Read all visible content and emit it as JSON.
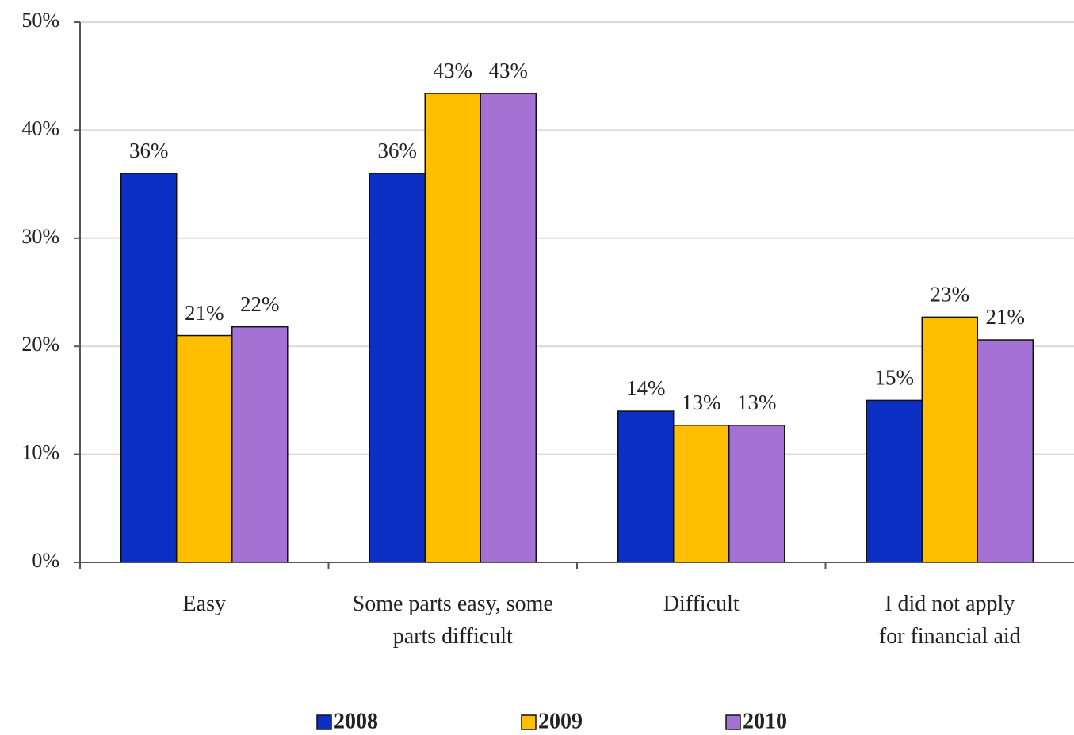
{
  "chart_data": {
    "type": "bar",
    "categories": [
      "Easy",
      "Some parts easy, some parts difficult",
      "Difficult",
      "I did not apply for financial aid"
    ],
    "series": [
      {
        "name": "2008",
        "color": "#0c2fc4",
        "values": [
          36,
          36,
          14,
          15
        ],
        "value_labels": [
          "36%",
          "36%",
          "14%",
          "15%"
        ]
      },
      {
        "name": "2009",
        "color": "#ffbf00",
        "values": [
          21,
          43.4,
          12.7,
          22.7
        ],
        "value_labels": [
          "21%",
          "43%",
          "13%",
          "23%"
        ]
      },
      {
        "name": "2010",
        "color": "#a472d4",
        "values": [
          21.8,
          43.4,
          12.7,
          20.6
        ],
        "value_labels": [
          "22%",
          "43%",
          "13%",
          "21%"
        ]
      }
    ],
    "ylim": [
      0,
      50
    ],
    "yticks": [
      {
        "value": 0,
        "label": "0%"
      },
      {
        "value": 10,
        "label": "10%"
      },
      {
        "value": 20,
        "label": "20%"
      },
      {
        "value": 30,
        "label": "30%"
      },
      {
        "value": 40,
        "label": "40%"
      },
      {
        "value": 50,
        "label": "50%"
      }
    ],
    "grid": true,
    "legend": "bottom"
  }
}
